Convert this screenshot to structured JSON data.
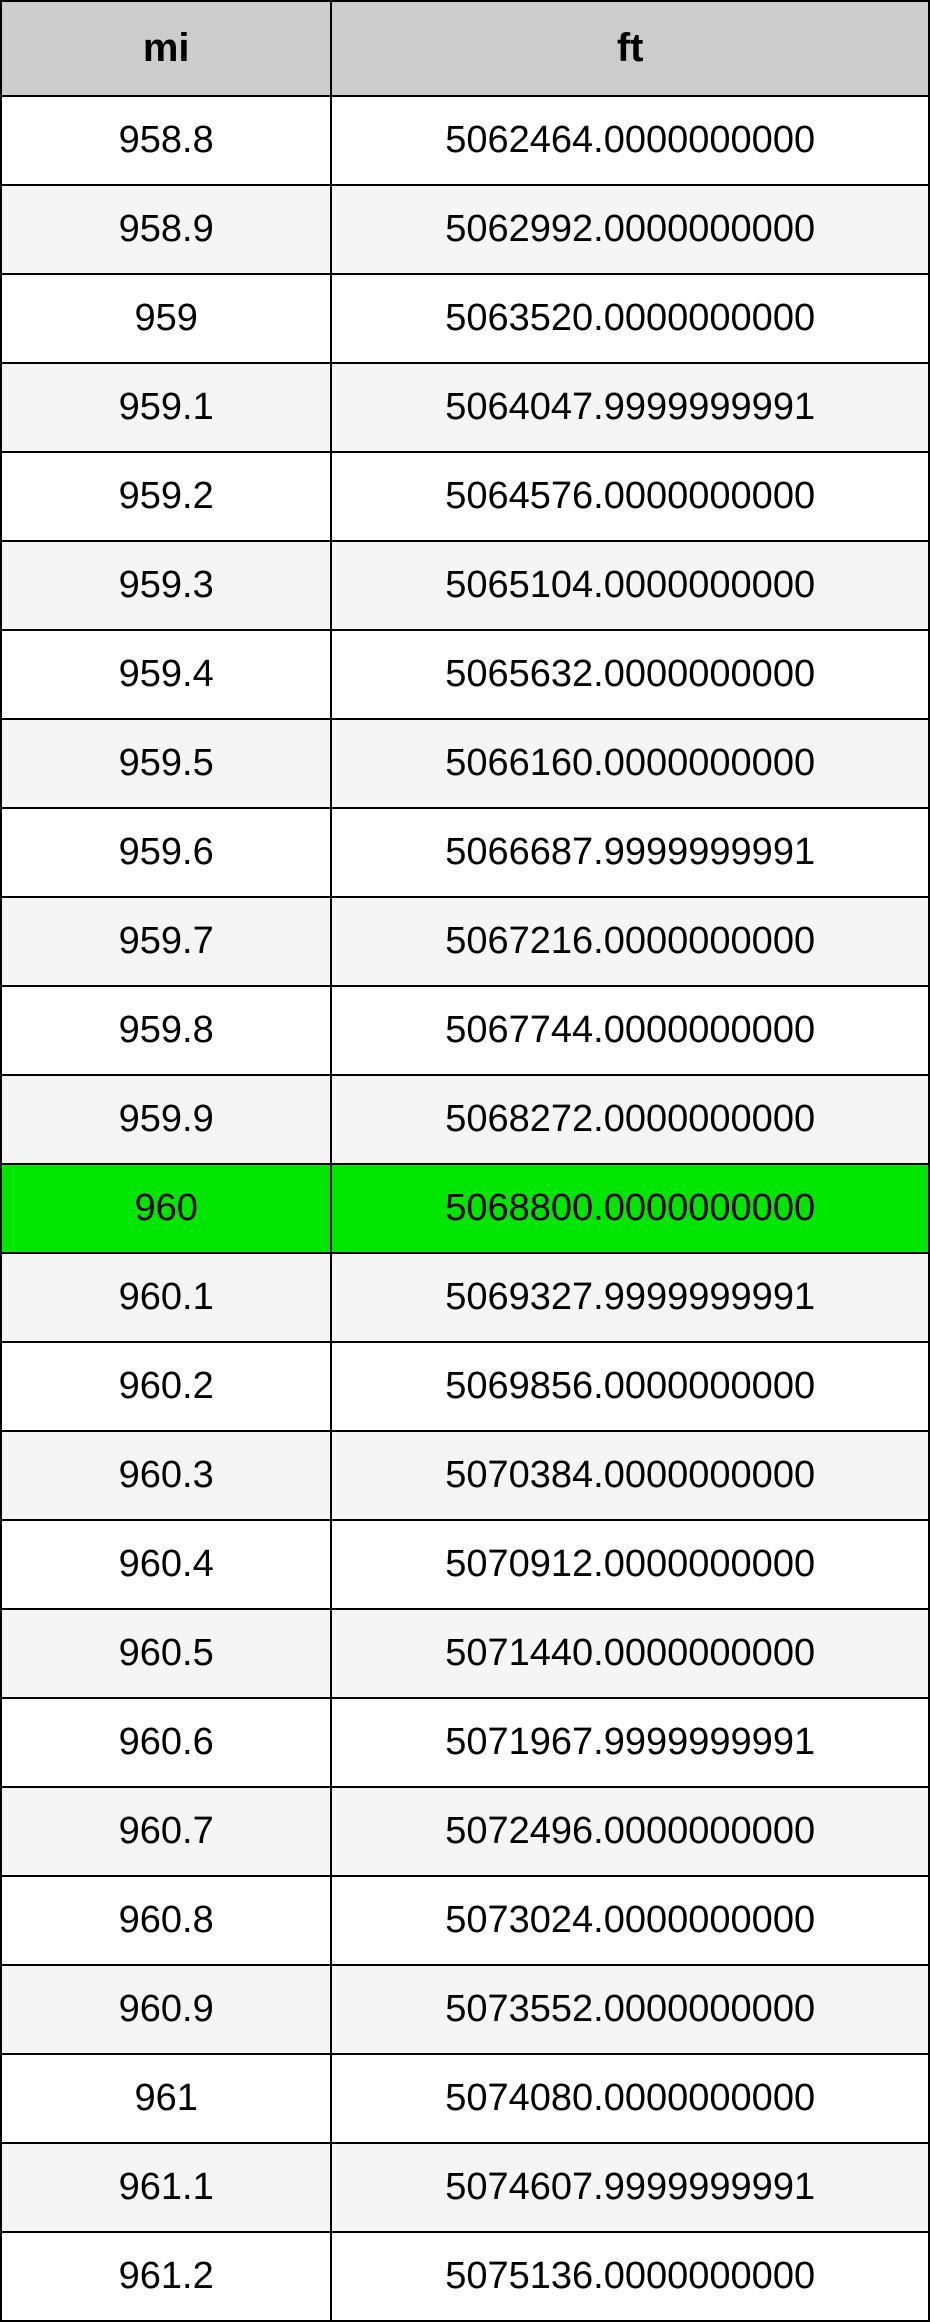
{
  "table": {
    "type": "table",
    "columns": [
      "mi",
      "ft"
    ],
    "header_bg": "#cccccc",
    "border_color": "#000000",
    "even_row_bg": "#f5f5f5",
    "odd_row_bg": "#ffffff",
    "highlight_bg": "#00e600",
    "header_fontsize": 40,
    "cell_fontsize": 38,
    "col_widths_pct": [
      35.6,
      64.4
    ],
    "highlight_index": 12,
    "rows": [
      {
        "mi": "958.8",
        "ft": "5062464.0000000000"
      },
      {
        "mi": "958.9",
        "ft": "5062992.0000000000"
      },
      {
        "mi": "959",
        "ft": "5063520.0000000000"
      },
      {
        "mi": "959.1",
        "ft": "5064047.9999999991"
      },
      {
        "mi": "959.2",
        "ft": "5064576.0000000000"
      },
      {
        "mi": "959.3",
        "ft": "5065104.0000000000"
      },
      {
        "mi": "959.4",
        "ft": "5065632.0000000000"
      },
      {
        "mi": "959.5",
        "ft": "5066160.0000000000"
      },
      {
        "mi": "959.6",
        "ft": "5066687.9999999991"
      },
      {
        "mi": "959.7",
        "ft": "5067216.0000000000"
      },
      {
        "mi": "959.8",
        "ft": "5067744.0000000000"
      },
      {
        "mi": "959.9",
        "ft": "5068272.0000000000"
      },
      {
        "mi": "960",
        "ft": "5068800.0000000000"
      },
      {
        "mi": "960.1",
        "ft": "5069327.9999999991"
      },
      {
        "mi": "960.2",
        "ft": "5069856.0000000000"
      },
      {
        "mi": "960.3",
        "ft": "5070384.0000000000"
      },
      {
        "mi": "960.4",
        "ft": "5070912.0000000000"
      },
      {
        "mi": "960.5",
        "ft": "5071440.0000000000"
      },
      {
        "mi": "960.6",
        "ft": "5071967.9999999991"
      },
      {
        "mi": "960.7",
        "ft": "5072496.0000000000"
      },
      {
        "mi": "960.8",
        "ft": "5073024.0000000000"
      },
      {
        "mi": "960.9",
        "ft": "5073552.0000000000"
      },
      {
        "mi": "961",
        "ft": "5074080.0000000000"
      },
      {
        "mi": "961.1",
        "ft": "5074607.9999999991"
      },
      {
        "mi": "961.2",
        "ft": "5075136.0000000000"
      }
    ]
  }
}
